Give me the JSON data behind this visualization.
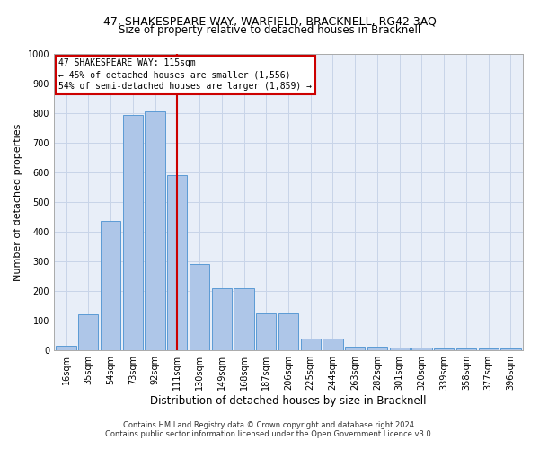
{
  "title1": "47, SHAKESPEARE WAY, WARFIELD, BRACKNELL, RG42 3AQ",
  "title2": "Size of property relative to detached houses in Bracknell",
  "xlabel": "Distribution of detached houses by size in Bracknell",
  "ylabel": "Number of detached properties",
  "bar_labels": [
    "16sqm",
    "35sqm",
    "54sqm",
    "73sqm",
    "92sqm",
    "111sqm",
    "130sqm",
    "149sqm",
    "168sqm",
    "187sqm",
    "206sqm",
    "225sqm",
    "244sqm",
    "263sqm",
    "282sqm",
    "301sqm",
    "320sqm",
    "339sqm",
    "358sqm",
    "377sqm",
    "396sqm"
  ],
  "bar_values": [
    15,
    120,
    435,
    795,
    805,
    590,
    290,
    210,
    210,
    125,
    125,
    38,
    38,
    12,
    12,
    10,
    10,
    5,
    5,
    5,
    5
  ],
  "bar_color": "#aec6e8",
  "bar_edge_color": "#5b9bd5",
  "property_line_x": 5.0,
  "annotation_text": "47 SHAKESPEARE WAY: 115sqm\n← 45% of detached houses are smaller (1,556)\n54% of semi-detached houses are larger (1,859) →",
  "vline_color": "#cc0000",
  "annotation_box_edge": "#cc0000",
  "annotation_box_face": "white",
  "ylim": [
    0,
    1000
  ],
  "yticks": [
    0,
    100,
    200,
    300,
    400,
    500,
    600,
    700,
    800,
    900,
    1000
  ],
  "grid_color": "#c8d4e8",
  "bg_color": "#e8eef8",
  "footer1": "Contains HM Land Registry data © Crown copyright and database right 2024.",
  "footer2": "Contains public sector information licensed under the Open Government Licence v3.0.",
  "title1_fontsize": 9,
  "title2_fontsize": 8.5,
  "ylabel_fontsize": 8,
  "xlabel_fontsize": 8.5,
  "tick_fontsize": 7,
  "annotation_fontsize": 7,
  "footer_fontsize": 6
}
